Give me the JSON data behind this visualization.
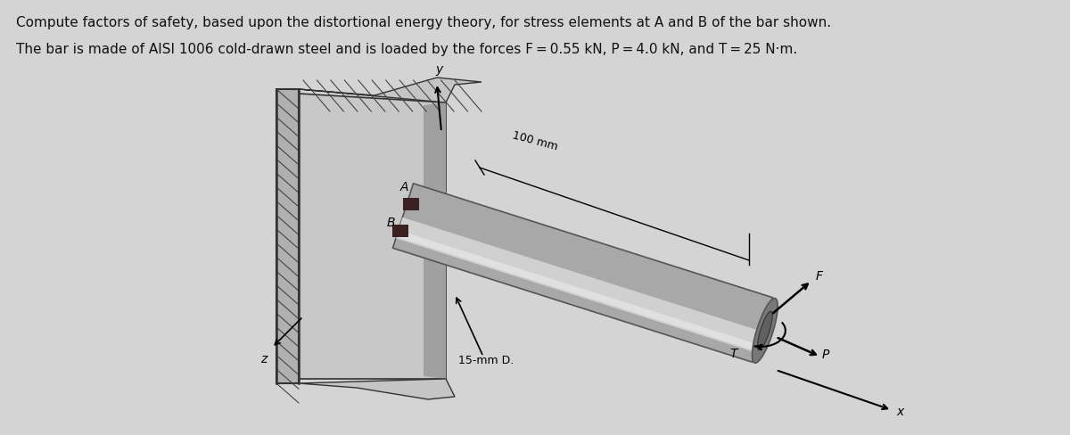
{
  "bg_color": "#d4d4d4",
  "text_color": "#111111",
  "title_line1": "Compute factors of safety, based upon the distortional energy theory, for stress elements at A and B of the bar shown.",
  "title_line2": "The bar is made of AISI 1006 cold-drawn steel and is loaded by the forces F = 0.55 kN, P = 4.0 kN, and T = 25 N·m.",
  "label_A": "A",
  "label_B": "B",
  "label_y": "y",
  "label_z": "z",
  "label_x": "x",
  "label_F": "F",
  "label_T": "T",
  "label_P": "P",
  "label_100mm": "100 mm",
  "label_15mmD": "15-mm D.",
  "wall_color": "#b0b0b0",
  "wall_edge_color": "#333333",
  "plate_color": "#c8c8c8",
  "plate_dark_color": "#a0a0a0",
  "bar_main_color": "#a8a8a8",
  "bar_light_color": "#d0d0d0",
  "bar_dark_color": "#787878",
  "bar_edge_color": "#555555",
  "hatch_color": "#444444"
}
